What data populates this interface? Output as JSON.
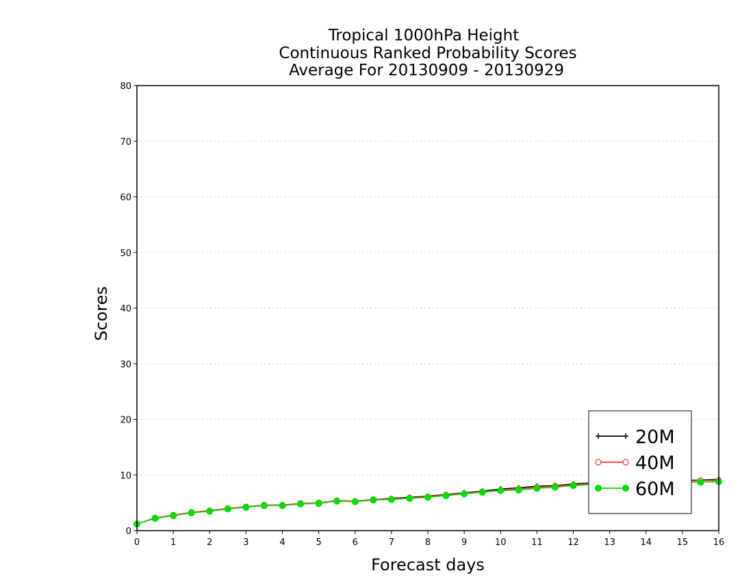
{
  "chart_data": {
    "type": "line",
    "title": [
      "Tropical 1000hPa Height",
      "Continuous Ranked Probability Scores",
      "Average For 20130909 - 20130929"
    ],
    "xlabel": "Forecast days",
    "ylabel": "Scores",
    "xlim": [
      0,
      16
    ],
    "ylim": [
      0,
      80
    ],
    "xticks": [
      "0",
      "1",
      "2",
      "3",
      "4",
      "5",
      "6",
      "7",
      "8",
      "9",
      "10",
      "11",
      "12",
      "13",
      "14",
      "15",
      "16"
    ],
    "yticks": [
      "0",
      "10",
      "20",
      "30",
      "40",
      "50",
      "60",
      "70",
      "80"
    ],
    "grid": "horizontal-dotted",
    "legend_position": "bottom-right",
    "x": [
      0,
      0.5,
      1,
      1.5,
      2,
      2.5,
      3,
      3.5,
      4,
      4.5,
      5,
      5.5,
      6,
      6.5,
      7,
      7.5,
      8,
      8.5,
      9,
      9.5,
      10,
      10.5,
      11,
      11.5,
      12,
      12.5,
      13,
      13.5,
      14,
      14.5,
      15,
      15.5,
      16
    ],
    "series": [
      {
        "name": "20M",
        "color": "#000000",
        "marker": "plus",
        "values": [
          1.2,
          2.3,
          2.8,
          3.3,
          3.6,
          4.0,
          4.3,
          4.6,
          4.6,
          4.9,
          5.0,
          5.4,
          5.3,
          5.6,
          5.8,
          6.0,
          6.2,
          6.5,
          6.8,
          7.1,
          7.5,
          7.7,
          8.0,
          8.1,
          8.4,
          8.6,
          8.8,
          8.8,
          8.9,
          8.9,
          9.0,
          9.1,
          9.2
        ]
      },
      {
        "name": "40M",
        "color": "#ff3333",
        "marker": "open-circle",
        "values": [
          1.2,
          2.3,
          2.8,
          3.3,
          3.6,
          4.0,
          4.3,
          4.6,
          4.6,
          4.9,
          5.0,
          5.4,
          5.3,
          5.6,
          5.7,
          5.9,
          6.1,
          6.4,
          6.7,
          7.0,
          7.3,
          7.5,
          7.8,
          8.0,
          8.2,
          8.5,
          8.6,
          8.7,
          8.8,
          8.9,
          8.9,
          9.0,
          9.0
        ]
      },
      {
        "name": "60M",
        "color": "#00dd00",
        "marker": "filled-circle",
        "values": [
          1.2,
          2.2,
          2.7,
          3.2,
          3.5,
          3.9,
          4.2,
          4.5,
          4.5,
          4.8,
          4.9,
          5.3,
          5.2,
          5.5,
          5.6,
          5.8,
          6.0,
          6.3,
          6.6,
          6.9,
          7.2,
          7.3,
          7.6,
          7.8,
          8.1,
          8.3,
          8.4,
          8.5,
          8.6,
          8.6,
          8.7,
          8.7,
          8.8
        ]
      }
    ]
  }
}
